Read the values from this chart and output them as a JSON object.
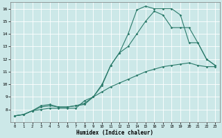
{
  "xlabel": "Humidex (Indice chaleur)",
  "xlim": [
    -0.5,
    23.5
  ],
  "ylim": [
    7,
    16.5
  ],
  "yticks": [
    8,
    9,
    10,
    11,
    12,
    13,
    14,
    15,
    16
  ],
  "xticks": [
    0,
    1,
    2,
    3,
    4,
    5,
    6,
    7,
    8,
    9,
    10,
    11,
    12,
    13,
    14,
    15,
    16,
    17,
    18,
    19,
    20,
    21,
    22,
    23
  ],
  "background_color": "#cce8e8",
  "grid_color": "#ffffff",
  "line_color": "#2a7a6a",
  "line1_x": [
    0,
    1,
    2,
    3,
    4,
    5,
    6,
    7,
    8,
    9,
    10,
    11,
    12,
    13,
    14,
    15,
    16,
    17,
    18,
    19,
    20,
    21,
    22,
    23
  ],
  "line1_y": [
    7.5,
    7.6,
    7.9,
    8.2,
    8.3,
    8.2,
    8.2,
    8.3,
    8.4,
    9.0,
    9.9,
    11.5,
    12.5,
    14.0,
    15.9,
    16.2,
    16.0,
    16.0,
    16.0,
    15.5,
    13.3,
    13.3,
    12.0,
    11.5
  ],
  "line2_x": [
    0,
    1,
    2,
    3,
    4,
    5,
    6,
    7,
    8,
    9,
    10,
    11,
    12,
    13,
    14,
    15,
    16,
    17,
    18,
    19,
    20,
    21,
    22,
    23
  ],
  "line2_y": [
    7.5,
    7.6,
    7.9,
    8.3,
    8.4,
    8.2,
    8.2,
    8.3,
    8.5,
    9.0,
    10.0,
    11.5,
    12.5,
    13.0,
    14.0,
    15.0,
    15.8,
    15.5,
    14.5,
    14.5,
    14.5,
    13.3,
    12.0,
    11.5
  ],
  "line3_x": [
    0,
    1,
    2,
    3,
    4,
    5,
    6,
    7,
    8,
    9,
    10,
    11,
    12,
    13,
    14,
    15,
    16,
    17,
    18,
    19,
    20,
    21,
    22,
    23
  ],
  "line3_y": [
    7.5,
    7.6,
    7.9,
    8.0,
    8.1,
    8.1,
    8.1,
    8.1,
    8.7,
    9.0,
    9.4,
    9.8,
    10.1,
    10.4,
    10.7,
    11.0,
    11.2,
    11.4,
    11.5,
    11.6,
    11.7,
    11.5,
    11.4,
    11.4
  ],
  "marker": "D",
  "markersize": 1.8,
  "linewidth": 0.8
}
